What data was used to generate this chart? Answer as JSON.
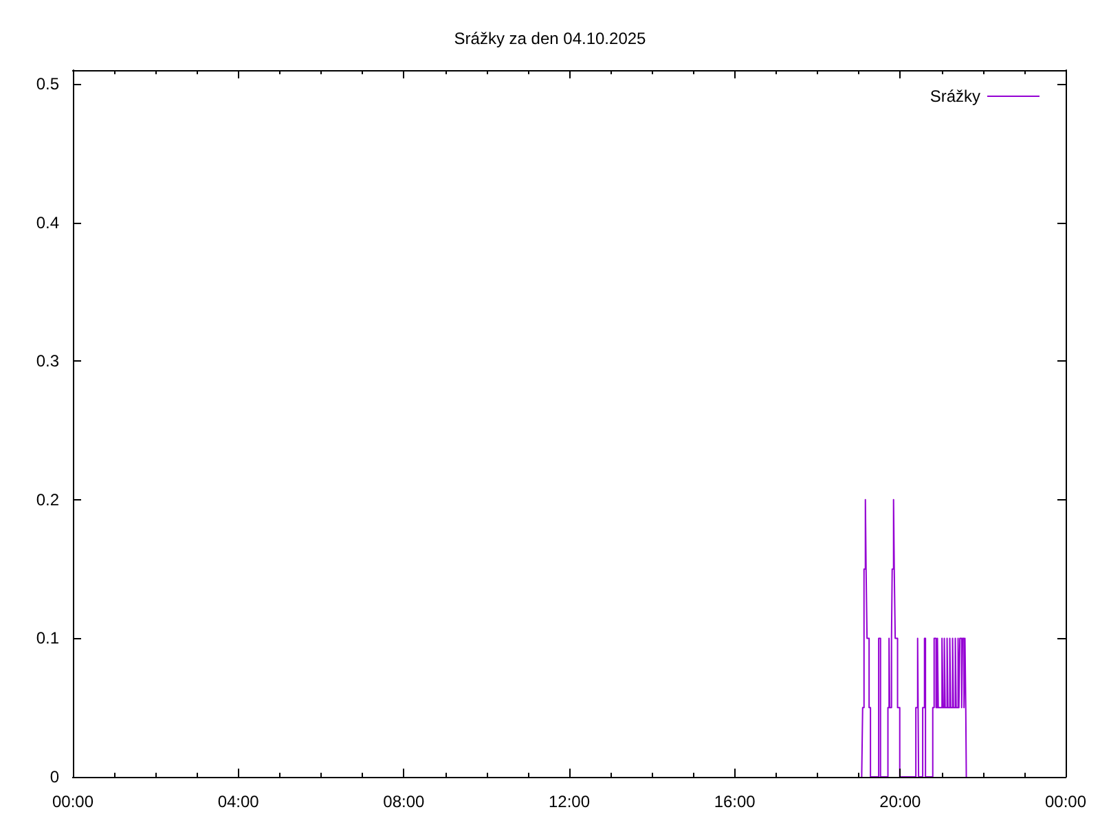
{
  "chart_data": {
    "type": "step",
    "title": "Srážky za den 04.10.2025",
    "xlim": [
      0,
      24
    ],
    "xticks": [
      {
        "value": 0,
        "label": "00:00"
      },
      {
        "value": 1,
        "label": null
      },
      {
        "value": 2,
        "label": null
      },
      {
        "value": 3,
        "label": null
      },
      {
        "value": 4,
        "label": "04:00"
      },
      {
        "value": 5,
        "label": null
      },
      {
        "value": 6,
        "label": null
      },
      {
        "value": 7,
        "label": null
      },
      {
        "value": 8,
        "label": "08:00"
      },
      {
        "value": 9,
        "label": null
      },
      {
        "value": 10,
        "label": null
      },
      {
        "value": 11,
        "label": null
      },
      {
        "value": 12,
        "label": "12:00"
      },
      {
        "value": 13,
        "label": null
      },
      {
        "value": 14,
        "label": null
      },
      {
        "value": 15,
        "label": null
      },
      {
        "value": 16,
        "label": "16:00"
      },
      {
        "value": 17,
        "label": null
      },
      {
        "value": 18,
        "label": null
      },
      {
        "value": 19,
        "label": null
      },
      {
        "value": 20,
        "label": "20:00"
      },
      {
        "value": 21,
        "label": null
      },
      {
        "value": 22,
        "label": null
      },
      {
        "value": 23,
        "label": null
      },
      {
        "value": 24,
        "label": "00:00"
      }
    ],
    "ylim": [
      0,
      0.51
    ],
    "yticks": [
      0,
      0.1,
      0.2,
      0.3,
      0.4,
      0.5
    ],
    "legend": "top right",
    "series": [
      {
        "name": "Srážky",
        "color": "#9400d3",
        "x": [
          19.07,
          19.093,
          19.126,
          19.159,
          19.176,
          19.199,
          19.249,
          19.282,
          19.481,
          19.525,
          19.704,
          19.731,
          19.747,
          19.791,
          19.807,
          19.84,
          19.857,
          19.88,
          19.937,
          19.99,
          20.379,
          20.422,
          20.445,
          20.545,
          20.588,
          20.612,
          20.788,
          20.821,
          20.868,
          20.901,
          20.921,
          21.011,
          21.034,
          21.067,
          21.087,
          21.134,
          21.154,
          21.2,
          21.22,
          21.267,
          21.287,
          21.333,
          21.353,
          21.4,
          21.42,
          21.443,
          21.486,
          21.509,
          21.543,
          21.566,
          21.586,
          21.599
        ],
        "values": [
          0,
          0.05,
          0.15,
          0.2,
          0.15,
          0.1,
          0.05,
          0,
          0.1,
          0,
          0.05,
          0.1,
          0.05,
          0.1,
          0.15,
          0.2,
          0.15,
          0.1,
          0.05,
          0,
          0.05,
          0.1,
          0,
          0.05,
          0.1,
          0,
          0.05,
          0.1,
          0.05,
          0.1,
          0.05,
          0.1,
          0.05,
          0.1,
          0.05,
          0.1,
          0.05,
          0.1,
          0.05,
          0.1,
          0.05,
          0.1,
          0.05,
          0.1,
          0.05,
          0.1,
          0.05,
          0.1,
          0.05,
          0.1,
          0.05,
          0
        ]
      }
    ]
  }
}
